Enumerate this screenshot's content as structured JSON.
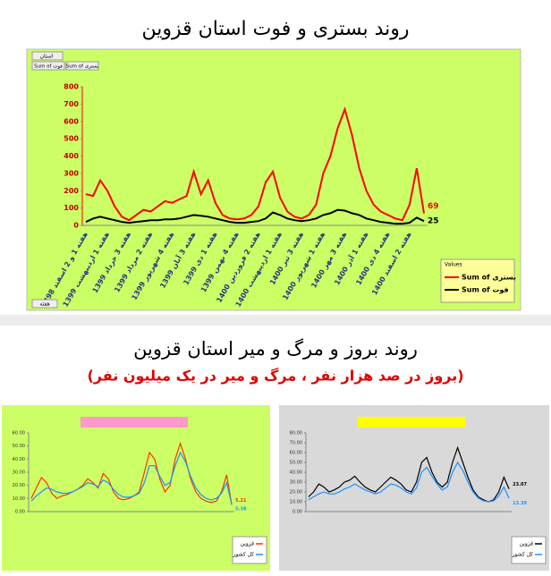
{
  "header": {
    "title": "روند بستری و فوت استان قزوین",
    "section2_title": "روند بروز و مرگ و میر استان قزوین",
    "section2_subtitle": "(بروز در صد هزار نفر ، مرگ و میر در یک میلیون نفر)"
  },
  "chart_data": [
    {
      "type": "line",
      "filter_label": "استان",
      "field_buttons": [
        "Sum of فوت",
        "Sum of بستری"
      ],
      "axis_button": "هفته",
      "legend_title": "Values",
      "ylim": [
        0,
        800
      ],
      "yticks": [
        0,
        100,
        200,
        300,
        400,
        500,
        600,
        700,
        800
      ],
      "categories": [
        "هفته 1 و 2 اسفند 1398",
        null,
        null,
        "هفته 1 اردیبهشت 1399",
        null,
        null,
        "هفته 3 خرداد 1399",
        null,
        null,
        "هفته 2 مرداد 1399",
        null,
        null,
        "هفته 4 شهریور 1399",
        null,
        null,
        "هفته 3 آبان 1399",
        null,
        null,
        "هفته 1 دی 1399",
        null,
        null,
        "هفته 4 بهمن 1399",
        null,
        null,
        "هفته 2 فروردین 1400",
        null,
        null,
        "هفته 1 اردیبهشت 1400",
        null,
        null,
        "هفته 3 تیر 1400",
        null,
        null,
        "هفته 1 شهریور 1400",
        null,
        null,
        "هفته 3 مهر 1400",
        null,
        null,
        "هفته 1 آذر 1400",
        null,
        null,
        "هفته 4 دی 1400",
        null,
        null,
        "هفته 2 اسفند 1400",
        null,
        null
      ],
      "series": [
        {
          "name": "Sum of بستری",
          "color": "#ff0000",
          "values": [
            180,
            170,
            260,
            200,
            110,
            50,
            30,
            60,
            90,
            80,
            110,
            140,
            130,
            150,
            170,
            310,
            180,
            260,
            130,
            60,
            40,
            35,
            40,
            60,
            110,
            250,
            310,
            160,
            80,
            50,
            40,
            60,
            120,
            300,
            400,
            560,
            670,
            520,
            330,
            200,
            120,
            80,
            60,
            40,
            30,
            120,
            330,
            69
          ]
        },
        {
          "name": "Sum of فوت",
          "color": "#000000",
          "values": [
            20,
            40,
            50,
            40,
            30,
            20,
            15,
            20,
            25,
            30,
            30,
            35,
            35,
            40,
            50,
            60,
            55,
            50,
            40,
            30,
            20,
            15,
            15,
            20,
            25,
            40,
            75,
            60,
            40,
            30,
            25,
            30,
            40,
            60,
            70,
            90,
            85,
            70,
            60,
            40,
            30,
            20,
            15,
            10,
            10,
            15,
            45,
            25
          ]
        }
      ]
    },
    {
      "type": "line",
      "ylim": [
        0,
        60
      ],
      "yticks": [
        {
          "value": 0,
          "label": "0.00"
        },
        {
          "value": 10,
          "label": "10.00"
        },
        {
          "value": 20,
          "label": "20.00"
        },
        {
          "value": 30,
          "label": "30.00"
        },
        {
          "value": 40,
          "label": "40.00"
        },
        {
          "value": 50,
          "label": "50.00"
        },
        {
          "value": 60,
          "label": "60.00"
        }
      ],
      "series": [
        {
          "name": "قزوین",
          "color": "#ff3300",
          "values": [
            10,
            18,
            26,
            22,
            14,
            10,
            12,
            13,
            15,
            17,
            20,
            25,
            22,
            18,
            29,
            25,
            15,
            10,
            9,
            10,
            12,
            15,
            30,
            45,
            40,
            25,
            15,
            20,
            40,
            52,
            40,
            25,
            15,
            10,
            8,
            7,
            8,
            15,
            28,
            5.21
          ]
        },
        {
          "name": "کل کشور",
          "color": "#1e90ff",
          "values": [
            8,
            12,
            15,
            18,
            17,
            15,
            14,
            14,
            15,
            17,
            19,
            22,
            21,
            19,
            24,
            22,
            17,
            13,
            11,
            11,
            12,
            14,
            22,
            35,
            35,
            27,
            20,
            22,
            35,
            45,
            38,
            27,
            18,
            13,
            10,
            9,
            10,
            14,
            22,
            5.38
          ]
        }
      ]
    },
    {
      "type": "line",
      "ylim": [
        0,
        80
      ],
      "yticks": [
        {
          "value": 0,
          "label": "0.00"
        },
        {
          "value": 10,
          "label": "10.00"
        },
        {
          "value": 20,
          "label": "20.00"
        },
        {
          "value": 30,
          "label": "30.00"
        },
        {
          "value": 40,
          "label": "40.00"
        },
        {
          "value": 50,
          "label": "50.00"
        },
        {
          "value": 60,
          "label": "60.00"
        },
        {
          "value": 70,
          "label": "70.00"
        },
        {
          "value": 80,
          "label": "80.00"
        }
      ],
      "series": [
        {
          "name": "قزوین",
          "color": "#000000",
          "values": [
            15,
            20,
            28,
            25,
            20,
            22,
            25,
            30,
            32,
            36,
            30,
            25,
            22,
            20,
            25,
            30,
            35,
            32,
            28,
            22,
            20,
            30,
            50,
            55,
            40,
            30,
            25,
            30,
            50,
            65,
            50,
            35,
            22,
            15,
            12,
            10,
            12,
            20,
            35,
            23.07
          ]
        },
        {
          "name": "کل کشور",
          "color": "#1e90ff",
          "values": [
            12,
            15,
            18,
            20,
            18,
            18,
            20,
            23,
            25,
            28,
            25,
            22,
            20,
            18,
            20,
            24,
            28,
            27,
            24,
            20,
            18,
            24,
            40,
            45,
            36,
            28,
            22,
            25,
            40,
            50,
            42,
            30,
            20,
            14,
            11,
            10,
            11,
            16,
            25,
            13.39
          ]
        }
      ]
    }
  ]
}
